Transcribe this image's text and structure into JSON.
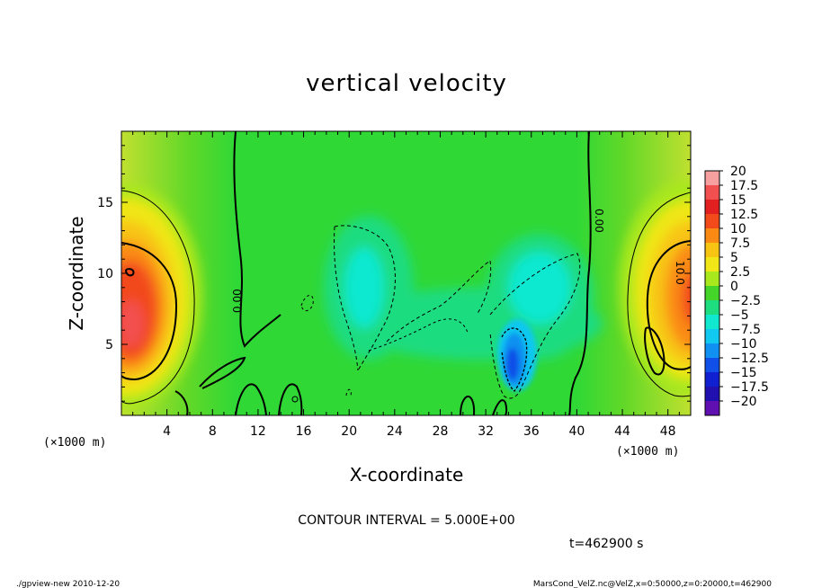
{
  "chart_data": {
    "type": "heatmap",
    "title": "vertical velocity",
    "xlabel": "X-coordinate",
    "ylabel": "Z-coordinate",
    "x_unit": "(×1000 m)",
    "y_unit": "(×1000 m)",
    "xlim": [
      0,
      50
    ],
    "ylim": [
      0,
      20
    ],
    "x_ticks": [
      "4",
      "8",
      "12",
      "16",
      "20",
      "24",
      "28",
      "32",
      "36",
      "40",
      "44",
      "48"
    ],
    "y_ticks": [
      "5",
      "10",
      "15"
    ],
    "colorbar": {
      "labels": [
        "20",
        "17.5",
        "15",
        "12.5",
        "10",
        "7.5",
        "5",
        "2.5",
        "0",
        "−2.5",
        "−5",
        "−7.5",
        "−10",
        "−12.5",
        "−15",
        "−17.5",
        "−20"
      ],
      "colors": [
        "#f6a0a0",
        "#f25050",
        "#e32020",
        "#f24a1a",
        "#fa8a14",
        "#f8c414",
        "#f0e618",
        "#a8e81c",
        "#44d42a",
        "#1edc80",
        "#10e8d0",
        "#10c8f0",
        "#1090f0",
        "#1050e8",
        "#1020d0",
        "#2010b0",
        "#6010b0"
      ]
    },
    "contour_labels": [
      "0.00",
      "0.00",
      "10.0"
    ],
    "contour_interval": "CONTOUR INTERVAL = 5.000E+00",
    "time": "t=462900 s"
  },
  "footer": {
    "left": "./gpview-new  2010-12-20",
    "right": "MarsCond_VelZ.nc@VelZ,x=0:50000,z=0:20000,t=462900"
  }
}
